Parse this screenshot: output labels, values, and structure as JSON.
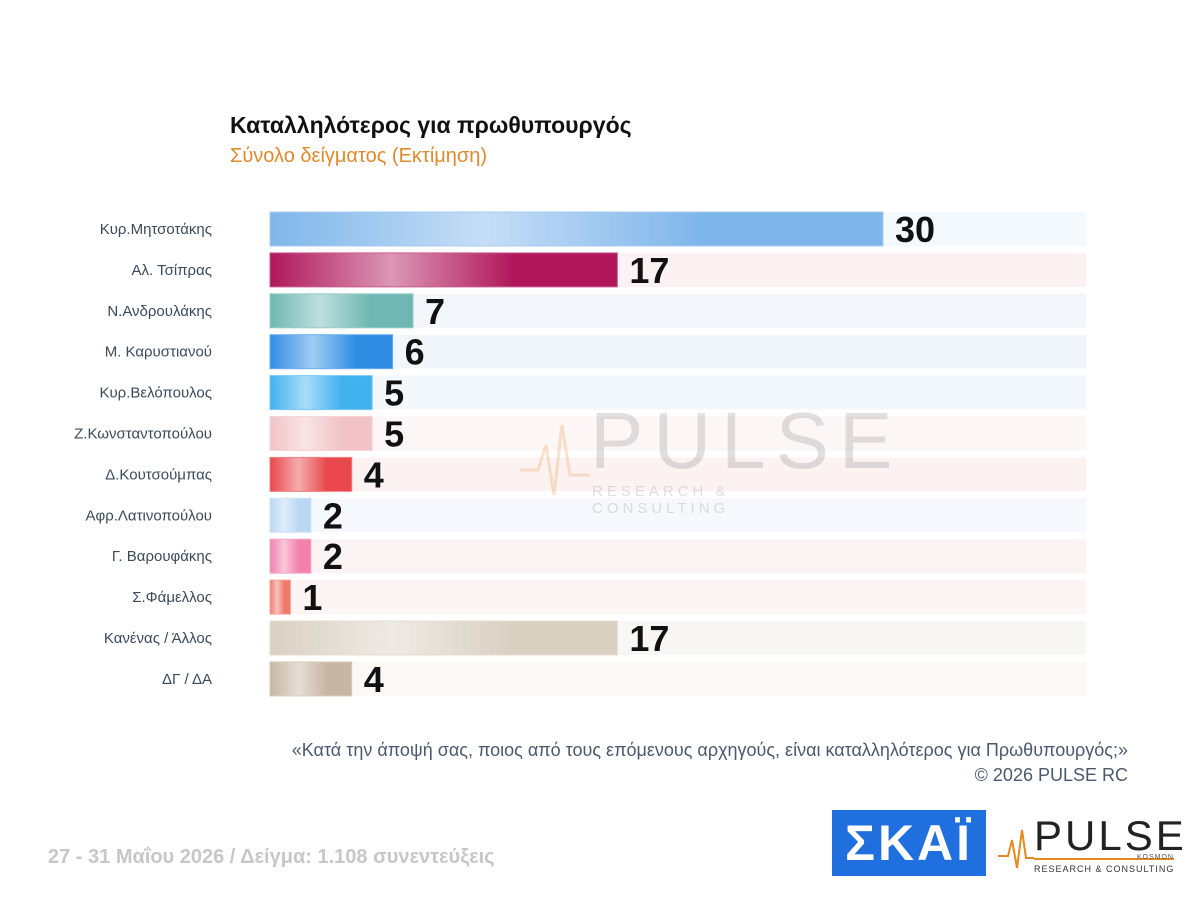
{
  "title": "Καταλληλότερος για πρωθυπουργός",
  "subtitle": "Σύνολο δείγματος  (Εκτίμηση)",
  "watermark": {
    "text": "PULSE",
    "sub": "RESEARCH & CONSULTING"
  },
  "question": "«Κατά την άποψή σας, ποιος από τους επόμενους αρχηγούς, είναι καταλληλότερος για Πρωθυπουργός;»",
  "copyright": "©  2026  PULSE RC",
  "footer_note": "27 - 31  Μαΐου 2026  /  Δείγμα:  1.108 συνεντεύξεις",
  "logos": {
    "skai": "ΣΚΑΪ",
    "pulse": "PULSE",
    "pulse_kosmon": "KOSMON",
    "pulse_sub": "RESEARCH & CONSULTING"
  },
  "chart_data": {
    "type": "bar",
    "orientation": "horizontal",
    "categories": [
      "Κυρ.Μητσοτάκης",
      "Αλ. Τσίπρας",
      "Ν.Ανδρουλάκης",
      "Μ. Καρυστιανού",
      "Κυρ.Βελόπουλος",
      "Ζ.Κωνσταντοπούλου",
      "Δ.Κουτσούμπας",
      "Αφρ.Λατινοπούλου",
      "Γ. Βαρουφάκης",
      "Σ.Φάμελλος",
      "Κανένας / Άλλος",
      "ΔΓ / ΔΑ"
    ],
    "values": [
      30,
      17,
      7,
      6,
      5,
      5,
      4,
      2,
      2,
      1,
      17,
      4
    ],
    "xlim": [
      0,
      40
    ],
    "colors": [
      "#7fb6ea",
      "#b0175a",
      "#6fb7b2",
      "#2f8de4",
      "#41b2ee",
      "#f1c3c6",
      "#e8474c",
      "#b9d8f3",
      "#f282ac",
      "#f07a6a",
      "#d9d0c2",
      "#c7b6a4"
    ],
    "row_tints": [
      "#f4f9fd",
      "#fcf1f3",
      "#f3f7fb",
      "#f1f6fc",
      "#f2f8fc",
      "#fdf6f6",
      "#fcf2f2",
      "#f5f8fc",
      "#fcf3f5",
      "#fdf5f3",
      "#f8f7f6",
      "#fbf8f6"
    ],
    "grid": false,
    "legend": "none"
  }
}
